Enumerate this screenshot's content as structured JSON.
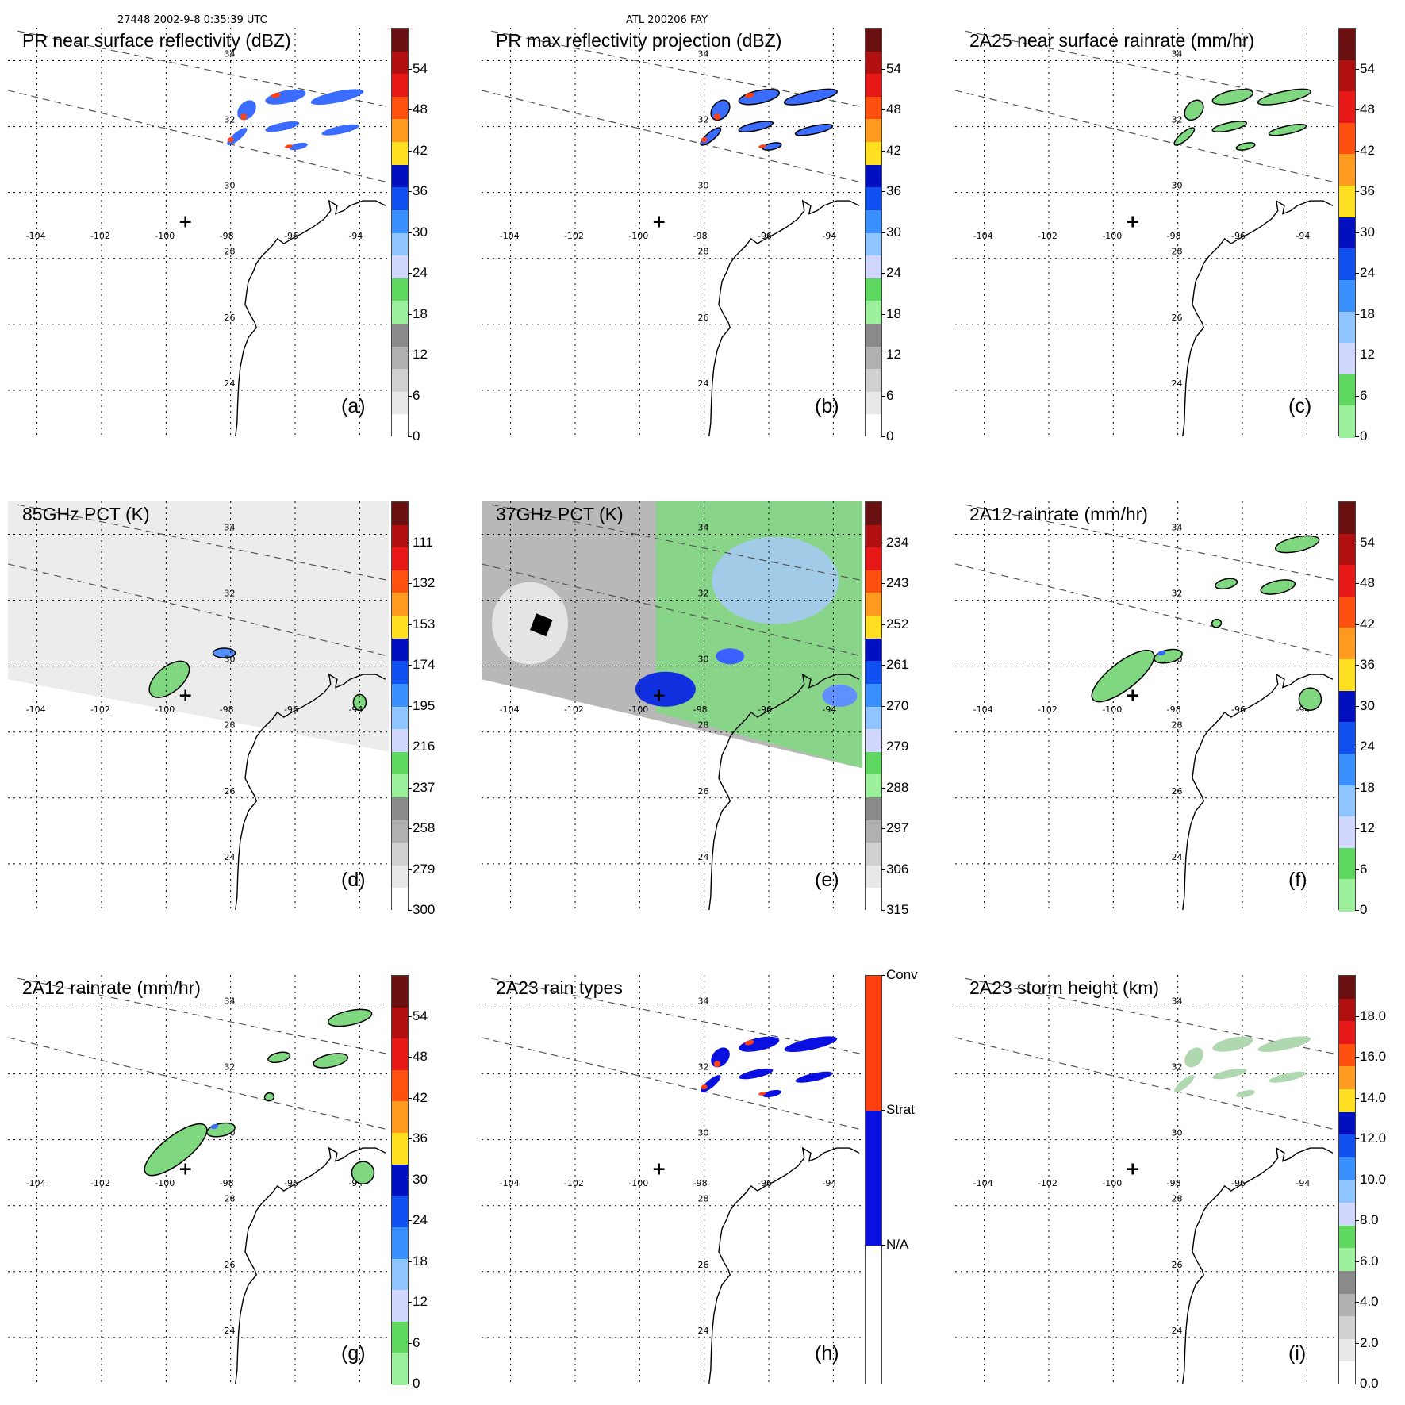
{
  "header": {
    "left": "27448 2002-9-8 0:35:39 UTC",
    "center": "ATL 200206 FAY"
  },
  "map": {
    "lat_labels": [
      "34",
      "32",
      "30",
      "28",
      "26",
      "24"
    ],
    "lon_labels": [
      "-104",
      "-102",
      "-100",
      "-98",
      "-96",
      "-94"
    ],
    "site_marker": "+"
  },
  "panels": [
    {
      "id": "a",
      "title": "PR near surface reflectivity (dBZ)",
      "label": "(a)",
      "scale": "refl",
      "ticks": [
        "54",
        "48",
        "42",
        "36",
        "30",
        "24",
        "18",
        "12",
        "6",
        "0"
      ]
    },
    {
      "id": "b",
      "title": "PR max reflectivity projection (dBZ)",
      "label": "(b)",
      "scale": "refl",
      "ticks": [
        "54",
        "48",
        "42",
        "36",
        "30",
        "24",
        "18",
        "12",
        "6",
        "0"
      ]
    },
    {
      "id": "c",
      "title": "2A25 near surface rainrate (mm/hr)",
      "label": "(c)",
      "scale": "rain",
      "ticks": [
        "54",
        "48",
        "42",
        "36",
        "30",
        "24",
        "18",
        "12",
        "6",
        "0"
      ]
    },
    {
      "id": "d",
      "title": "85GHz PCT (K)",
      "label": "(d)",
      "scale": "pct",
      "ticks": [
        "111",
        "132",
        "153",
        "174",
        "195",
        "216",
        "237",
        "258",
        "279",
        "300"
      ]
    },
    {
      "id": "e",
      "title": "37GHz PCT (K)",
      "label": "(e)",
      "scale": "pct",
      "ticks": [
        "234",
        "243",
        "252",
        "261",
        "270",
        "279",
        "288",
        "297",
        "306",
        "315"
      ]
    },
    {
      "id": "f",
      "title": "2A12 rainrate (mm/hr)",
      "label": "(f)",
      "scale": "rain",
      "ticks": [
        "54",
        "48",
        "42",
        "36",
        "30",
        "24",
        "18",
        "12",
        "6",
        "0"
      ]
    },
    {
      "id": "g",
      "title": "2A12 rainrate (mm/hr)",
      "label": "(g)",
      "scale": "rain",
      "ticks": [
        "54",
        "48",
        "42",
        "36",
        "30",
        "24",
        "18",
        "12",
        "6",
        "0"
      ]
    },
    {
      "id": "h",
      "title": "2A23 rain types",
      "label": "(h)",
      "scale": "types",
      "ticks": [
        "Conv",
        "Strat",
        "N/A"
      ]
    },
    {
      "id": "i",
      "title": "2A23 storm height (km)",
      "label": "(i)",
      "scale": "height",
      "ticks": [
        "18.0",
        "16.0",
        "14.0",
        "12.0",
        "10.0",
        "8.0",
        "6.0",
        "4.0",
        "2.0",
        "0.0"
      ]
    }
  ],
  "colors": {
    "coast": "#000000",
    "grid": "#000000",
    "swath": "#555555",
    "light_green": "#7fd87f",
    "strat_blue": "#0a10e0",
    "conv_red": "#ff4010"
  }
}
